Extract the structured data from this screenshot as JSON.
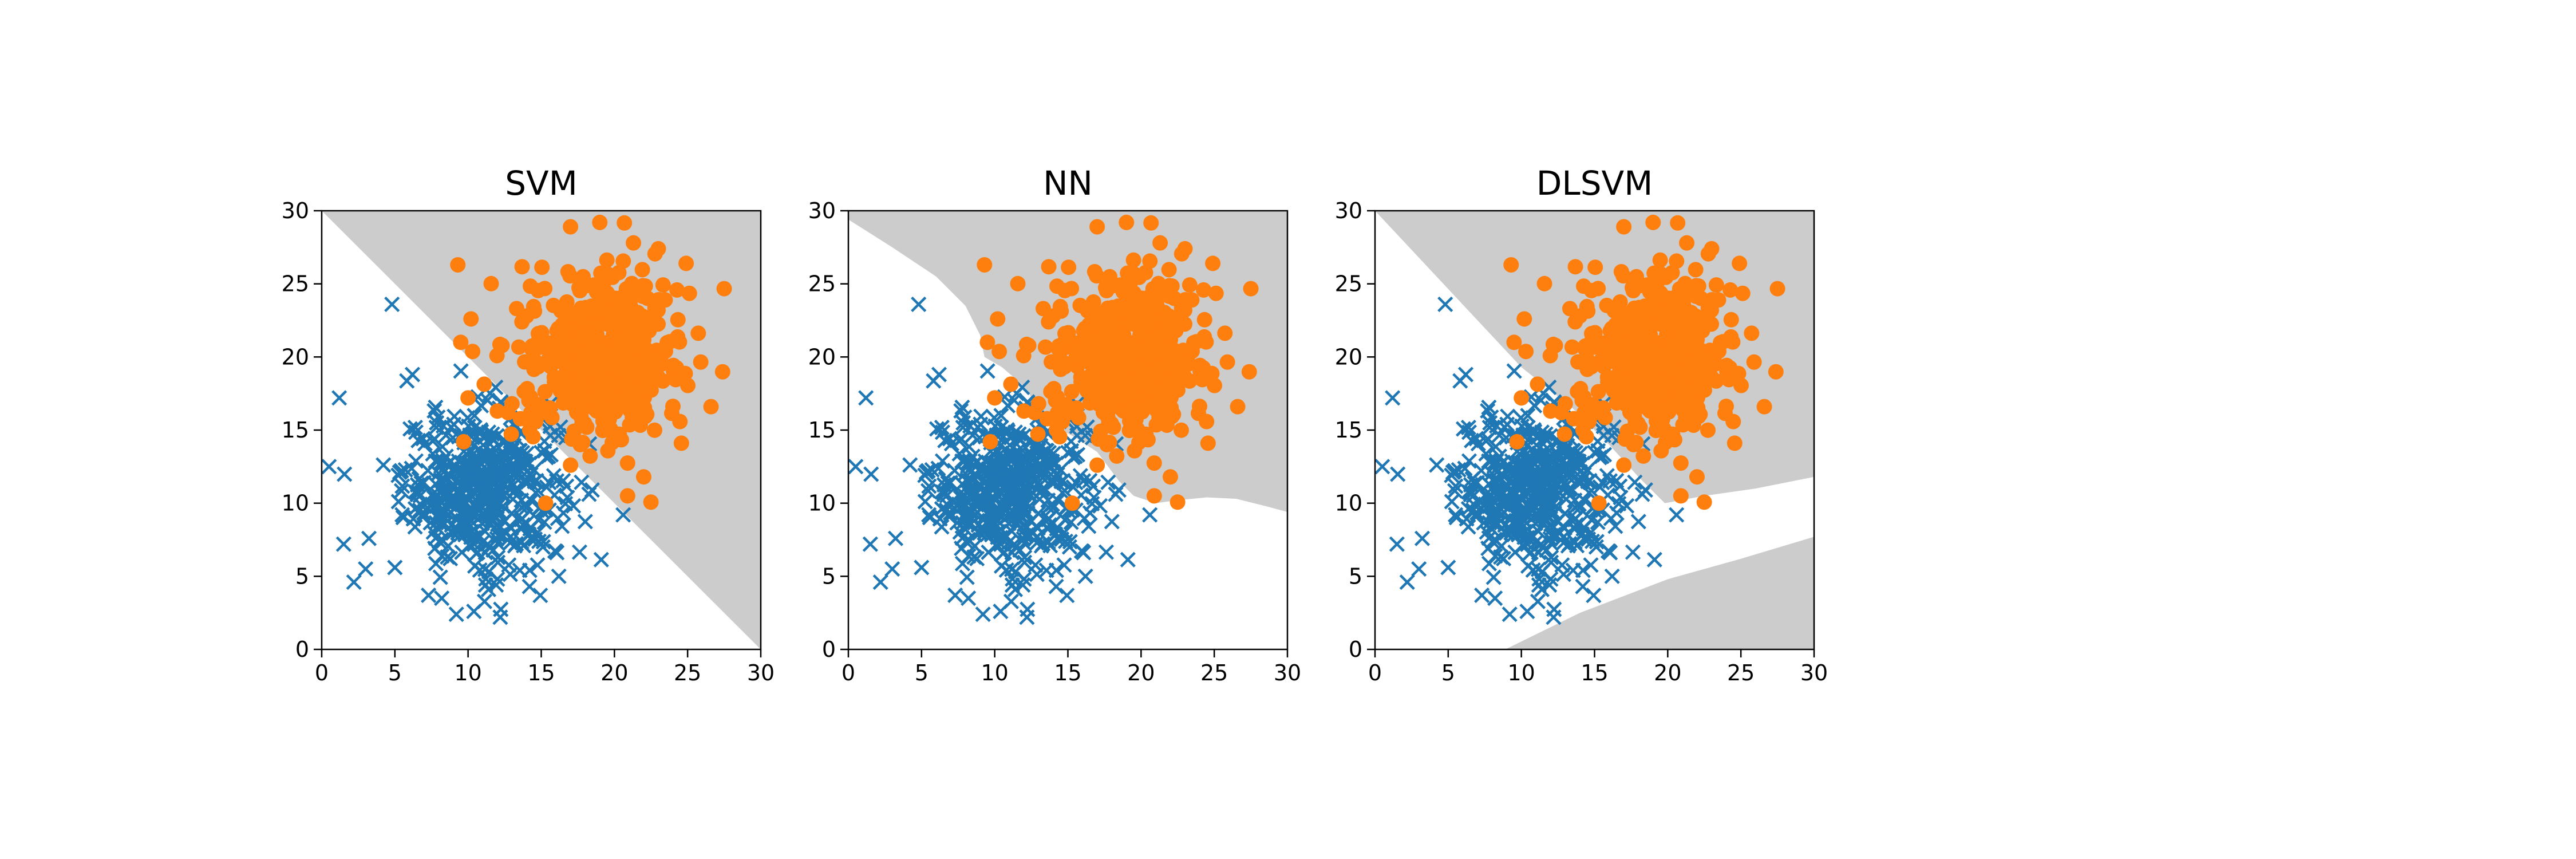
{
  "colors": {
    "class0": "#1f77b4",
    "class1": "#ff7f0e",
    "region": "#cccccc",
    "axes": "#000000",
    "background": "#ffffff"
  },
  "chart_data": [
    {
      "type": "scatter",
      "title": "SVM",
      "xlabel": "",
      "ylabel": "",
      "xlim": [
        0,
        30
      ],
      "ylim": [
        0,
        30
      ],
      "xticks": [
        "0",
        "5",
        "10",
        "15",
        "20",
        "25",
        "30"
      ],
      "yticks": [
        "0",
        "5",
        "10",
        "15",
        "20",
        "25",
        "30"
      ],
      "grid": false,
      "series": [
        {
          "marker": "x",
          "color": "#1f77b4",
          "center": [
            11,
            11
          ],
          "spread": 2.7,
          "count": 500,
          "points": [
            [
              0.5,
              12.5
            ],
            [
              1.2,
              17.2
            ],
            [
              4.8,
              23.6
            ],
            [
              6.2,
              18.8
            ],
            [
              1.5,
              7.2
            ],
            [
              2.2,
              4.6
            ],
            [
              3.0,
              5.5
            ],
            [
              5.0,
              5.6
            ],
            [
              7.3,
              3.7
            ],
            [
              8.2,
              3.5
            ],
            [
              9.2,
              2.4
            ],
            [
              10.4,
              2.6
            ],
            [
              11.2,
              4.4
            ],
            [
              12.2,
              2.2
            ],
            [
              14.2,
              4.3
            ],
            [
              16.2,
              5.0
            ],
            [
              16.0,
              6.7
            ],
            [
              20.6,
              9.2
            ],
            [
              15.5,
              13.2
            ]
          ]
        },
        {
          "marker": "o",
          "color": "#ff7f0e",
          "center": [
            19,
            20
          ],
          "spread": 2.8,
          "count": 500,
          "points": [
            [
              9.3,
              26.3
            ],
            [
              17.0,
              28.9
            ],
            [
              19.0,
              29.2
            ],
            [
              21.3,
              27.8
            ],
            [
              23.0,
              27.4
            ],
            [
              24.9,
              26.4
            ],
            [
              26.6,
              16.6
            ],
            [
              22.0,
              11.8
            ],
            [
              20.9,
              10.5
            ],
            [
              17.0,
              12.6
            ],
            [
              15.3,
              10.0
            ],
            [
              9.7,
              14.2
            ],
            [
              12.0,
              16.3
            ],
            [
              10.0,
              17.2
            ],
            [
              10.2,
              22.6
            ],
            [
              9.5,
              21.0
            ]
          ]
        }
      ],
      "decision_region": {
        "class": "orange",
        "boundary": [
          [
            0,
            30
          ],
          [
            30,
            0
          ]
        ]
      }
    },
    {
      "type": "scatter",
      "title": "NN",
      "xlabel": "",
      "ylabel": "",
      "xlim": [
        0,
        30
      ],
      "ylim": [
        0,
        30
      ],
      "xticks": [
        "0",
        "5",
        "10",
        "15",
        "20",
        "25",
        "30"
      ],
      "yticks": [
        "0",
        "5",
        "10",
        "15",
        "20",
        "25",
        "30"
      ],
      "grid": false,
      "series": [
        {
          "marker": "x",
          "color": "#1f77b4",
          "center": [
            11,
            11
          ],
          "spread": 2.7,
          "count": 500,
          "points": [
            [
              0.5,
              12.5
            ],
            [
              1.2,
              17.2
            ],
            [
              4.8,
              23.6
            ],
            [
              6.2,
              18.8
            ],
            [
              1.5,
              7.2
            ],
            [
              2.2,
              4.6
            ],
            [
              3.0,
              5.5
            ],
            [
              5.0,
              5.6
            ],
            [
              7.3,
              3.7
            ],
            [
              8.2,
              3.5
            ],
            [
              9.2,
              2.4
            ],
            [
              10.4,
              2.6
            ],
            [
              11.2,
              4.4
            ],
            [
              12.2,
              2.2
            ],
            [
              14.2,
              4.3
            ],
            [
              16.2,
              5.0
            ],
            [
              16.0,
              6.7
            ],
            [
              20.6,
              9.2
            ],
            [
              15.5,
              13.2
            ]
          ]
        },
        {
          "marker": "o",
          "color": "#ff7f0e",
          "center": [
            19,
            20
          ],
          "spread": 2.8,
          "count": 500,
          "points": [
            [
              9.3,
              26.3
            ],
            [
              17.0,
              28.9
            ],
            [
              19.0,
              29.2
            ],
            [
              21.3,
              27.8
            ],
            [
              23.0,
              27.4
            ],
            [
              24.9,
              26.4
            ],
            [
              26.6,
              16.6
            ],
            [
              22.0,
              11.8
            ],
            [
              20.9,
              10.5
            ],
            [
              17.0,
              12.6
            ],
            [
              15.3,
              10.0
            ],
            [
              9.7,
              14.2
            ],
            [
              12.0,
              16.3
            ],
            [
              10.0,
              17.2
            ],
            [
              10.2,
              22.6
            ],
            [
              9.5,
              21.0
            ]
          ]
        }
      ],
      "decision_region": {
        "class": "orange",
        "boundary": [
          [
            0,
            29.4
          ],
          [
            3.0,
            27.5
          ],
          [
            6.0,
            25.5
          ],
          [
            8.0,
            23.5
          ],
          [
            9.0,
            21.5
          ],
          [
            9.3,
            20.0
          ],
          [
            10.5,
            19.3
          ],
          [
            12.0,
            18.0
          ],
          [
            13.0,
            16.5
          ],
          [
            14.0,
            15.3
          ],
          [
            15.5,
            14.5
          ],
          [
            17.0,
            13.5
          ],
          [
            18.5,
            11.5
          ],
          [
            19.5,
            10.5
          ],
          [
            21.0,
            10.0
          ],
          [
            22.5,
            10.2
          ],
          [
            24.5,
            10.4
          ],
          [
            26.5,
            10.3
          ],
          [
            28.5,
            9.8
          ],
          [
            30,
            9.4
          ]
        ]
      }
    },
    {
      "type": "scatter",
      "title": "DLSVM",
      "xlabel": "",
      "ylabel": "",
      "xlim": [
        0,
        30
      ],
      "ylim": [
        0,
        30
      ],
      "xticks": [
        "0",
        "5",
        "10",
        "15",
        "20",
        "25",
        "30"
      ],
      "yticks": [
        "0",
        "5",
        "10",
        "15",
        "20",
        "25",
        "30"
      ],
      "grid": false,
      "series": [
        {
          "marker": "x",
          "color": "#1f77b4",
          "center": [
            11,
            11
          ],
          "spread": 2.7,
          "count": 500,
          "points": [
            [
              0.5,
              12.5
            ],
            [
              1.2,
              17.2
            ],
            [
              4.8,
              23.6
            ],
            [
              6.2,
              18.8
            ],
            [
              1.5,
              7.2
            ],
            [
              2.2,
              4.6
            ],
            [
              3.0,
              5.5
            ],
            [
              5.0,
              5.6
            ],
            [
              7.3,
              3.7
            ],
            [
              8.2,
              3.5
            ],
            [
              9.2,
              2.4
            ],
            [
              10.4,
              2.6
            ],
            [
              11.2,
              4.4
            ],
            [
              12.2,
              2.2
            ],
            [
              14.2,
              4.3
            ],
            [
              16.2,
              5.0
            ],
            [
              16.0,
              6.7
            ],
            [
              20.6,
              9.2
            ],
            [
              15.5,
              13.2
            ]
          ]
        },
        {
          "marker": "o",
          "color": "#ff7f0e",
          "center": [
            19,
            20
          ],
          "spread": 2.8,
          "count": 500,
          "points": [
            [
              9.3,
              26.3
            ],
            [
              17.0,
              28.9
            ],
            [
              19.0,
              29.2
            ],
            [
              21.3,
              27.8
            ],
            [
              23.0,
              27.4
            ],
            [
              24.9,
              26.4
            ],
            [
              26.6,
              16.6
            ],
            [
              22.0,
              11.8
            ],
            [
              20.9,
              10.5
            ],
            [
              17.0,
              12.6
            ],
            [
              15.3,
              10.0
            ],
            [
              9.7,
              14.2
            ],
            [
              12.0,
              16.3
            ],
            [
              10.0,
              17.2
            ],
            [
              10.2,
              22.6
            ],
            [
              9.5,
              21.0
            ]
          ]
        }
      ],
      "decision_region": {
        "class": "orange",
        "boundary": [
          [
            0,
            30
          ],
          [
            10,
            19.3
          ],
          [
            13.5,
            16.5
          ],
          [
            16.0,
            14.0
          ],
          [
            18.0,
            11.8
          ],
          [
            19.8,
            10.0
          ],
          [
            22.5,
            10.5
          ],
          [
            26.0,
            11.0
          ],
          [
            30,
            11.8
          ]
        ],
        "extra_region": [
          [
            8.9,
            0
          ],
          [
            14.0,
            2.5
          ],
          [
            20.0,
            4.8
          ],
          [
            25.0,
            6.2
          ],
          [
            30,
            7.7
          ],
          [
            30,
            0
          ]
        ]
      }
    }
  ]
}
